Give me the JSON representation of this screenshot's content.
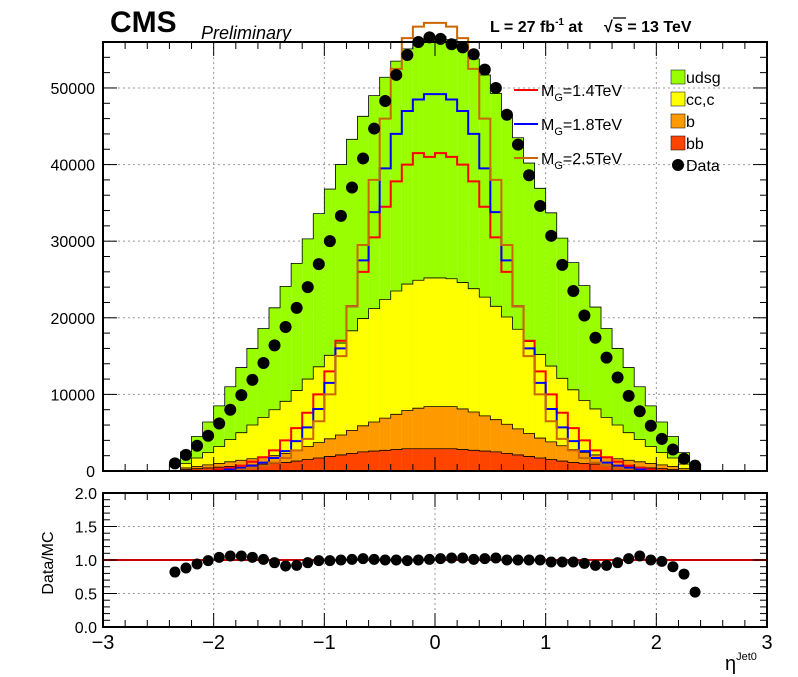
{
  "header": {
    "experiment": "CMS",
    "status": "Preliminary",
    "lumi_prefix": "L = 27 fb",
    "lumi_exp": "-1",
    "lumi_mid": " at ",
    "energy_sqrt": "s",
    "energy_suffix": " = 13 TeV"
  },
  "colors": {
    "udsg": "#99ff00",
    "cc": "#ffff00",
    "b": "#ff9900",
    "bb": "#ff4400",
    "sig14": "#ff0000",
    "sig18": "#0000ff",
    "sig25": "#cc6600",
    "data": "#000000",
    "ratio_line": "#cc0000"
  },
  "chart_data": [
    {
      "type": "histogram",
      "panel": "main",
      "xlabel": "η",
      "xlabel_sup": "Jet0",
      "xlim": [
        -3,
        3
      ],
      "ylim": [
        0,
        56000
      ],
      "grid": true,
      "bin_edges": [
        -3.0,
        -2.9,
        -2.8,
        -2.7,
        -2.6,
        -2.5,
        -2.4,
        -2.3,
        -2.2,
        -2.1,
        -2.0,
        -1.9,
        -1.8,
        -1.7,
        -1.6,
        -1.5,
        -1.4,
        -1.3,
        -1.2,
        -1.1,
        -1.0,
        -0.9,
        -0.8,
        -0.7,
        -0.6,
        -0.5,
        -0.4,
        -0.3,
        -0.2,
        -0.1,
        0.0,
        0.1,
        0.2,
        0.3,
        0.4,
        0.5,
        0.6,
        0.7,
        0.8,
        0.9,
        1.0,
        1.1,
        1.2,
        1.3,
        1.4,
        1.5,
        1.6,
        1.7,
        1.8,
        1.9,
        2.0,
        2.1,
        2.2,
        2.3,
        2.4,
        2.5,
        2.6,
        2.7,
        2.8,
        2.9,
        3.0
      ],
      "y_ticks": [
        0,
        10000,
        20000,
        30000,
        40000,
        50000
      ],
      "y_tick_labels": [
        "0",
        "10000",
        "20000",
        "30000",
        "40000",
        "50000"
      ],
      "stack": [
        {
          "name": "bb",
          "values": [
            0,
            0,
            0,
            0,
            0,
            0,
            0,
            200,
            300,
            400,
            500,
            600,
            700,
            800,
            900,
            1000,
            1100,
            1300,
            1500,
            1700,
            1900,
            2100,
            2300,
            2500,
            2600,
            2700,
            2800,
            2900,
            2900,
            2900,
            2900,
            2900,
            2800,
            2700,
            2600,
            2500,
            2300,
            2100,
            1900,
            1700,
            1500,
            1300,
            1100,
            1000,
            900,
            800,
            700,
            600,
            500,
            400,
            300,
            200,
            0,
            0,
            0,
            0,
            0,
            0,
            0,
            0
          ]
        },
        {
          "name": "b",
          "values": [
            0,
            0,
            0,
            0,
            0,
            0,
            0,
            200,
            300,
            400,
            500,
            600,
            700,
            800,
            900,
            1000,
            1200,
            1400,
            1700,
            2000,
            2300,
            2600,
            3000,
            3400,
            3800,
            4200,
            4600,
            5000,
            5300,
            5500,
            5500,
            5500,
            5300,
            5000,
            4600,
            4200,
            3800,
            3400,
            3000,
            2600,
            2300,
            2000,
            1700,
            1400,
            1200,
            1000,
            900,
            800,
            700,
            600,
            500,
            400,
            300,
            200,
            0,
            0,
            0,
            0,
            0,
            0
          ]
        },
        {
          "name": "cc,c",
          "values": [
            0,
            0,
            0,
            0,
            0,
            0,
            0,
            600,
            1100,
            1600,
            2200,
            2900,
            3600,
            4400,
            5200,
            6000,
            6800,
            7800,
            8800,
            9900,
            10900,
            12000,
            13000,
            14000,
            14800,
            15500,
            16100,
            16500,
            16700,
            16800,
            16800,
            16700,
            16500,
            16100,
            15500,
            14800,
            14000,
            13000,
            12000,
            10900,
            9900,
            8800,
            7800,
            6800,
            6000,
            5200,
            4400,
            3600,
            2900,
            2200,
            1600,
            1100,
            600,
            0,
            0,
            0,
            0,
            0,
            0,
            0
          ]
        },
        {
          "name": "udsg",
          "values": [
            0,
            0,
            0,
            0,
            0,
            0,
            0,
            1500,
            2800,
            4000,
            5300,
            6900,
            8500,
            10000,
            11600,
            13300,
            15000,
            16600,
            18300,
            20000,
            21700,
            23300,
            25000,
            26400,
            27800,
            29000,
            30000,
            30700,
            31200,
            31500,
            31500,
            31200,
            30700,
            30000,
            29000,
            27800,
            26400,
            25000,
            23300,
            21700,
            20000,
            18300,
            16600,
            15000,
            13300,
            11600,
            10000,
            8500,
            6900,
            5300,
            4000,
            2800,
            1500,
            0,
            0,
            0,
            0,
            0,
            0,
            0
          ]
        }
      ],
      "signals": [
        {
          "name": "M_G=1.4TeV",
          "label_main": "M",
          "label_sub": "G",
          "label_rest": "=1.4TeV",
          "values": [
            0,
            0,
            0,
            0,
            0,
            0,
            0,
            0,
            0,
            0,
            200,
            400,
            700,
            1200,
            1800,
            2700,
            4000,
            5600,
            7600,
            10000,
            13000,
            17000,
            21500,
            26000,
            30500,
            34500,
            37800,
            40000,
            41500,
            41000,
            41500,
            41000,
            40000,
            37800,
            34500,
            30500,
            26000,
            21500,
            17000,
            13000,
            10000,
            7600,
            5600,
            4000,
            2700,
            1800,
            1200,
            700,
            400,
            200,
            0,
            0,
            0,
            0,
            0,
            0,
            0,
            0,
            0,
            0
          ]
        },
        {
          "name": "M_G=1.8TeV",
          "label_main": "M",
          "label_sub": "G",
          "label_rest": "=1.8TeV",
          "values": [
            0,
            0,
            0,
            0,
            0,
            0,
            0,
            0,
            0,
            0,
            0,
            200,
            400,
            700,
            1100,
            1700,
            2600,
            3900,
            5700,
            8100,
            11500,
            16000,
            21500,
            27500,
            33800,
            39500,
            44000,
            47000,
            48500,
            49200,
            49200,
            48500,
            47000,
            44000,
            39500,
            33800,
            27500,
            21500,
            16000,
            11500,
            8100,
            5700,
            3900,
            2600,
            1700,
            1100,
            700,
            400,
            200,
            0,
            0,
            0,
            0,
            0,
            0,
            0,
            0,
            0,
            0,
            0
          ]
        },
        {
          "name": "M_G=2.5TeV",
          "label_main": "M",
          "label_sub": "G",
          "label_rest": "=2.5TeV",
          "values": [
            0,
            0,
            0,
            0,
            0,
            0,
            0,
            0,
            0,
            0,
            0,
            0,
            200,
            400,
            700,
            1100,
            1700,
            2700,
            4200,
            6500,
            10000,
            15000,
            21500,
            29500,
            38000,
            46000,
            52500,
            56500,
            58000,
            58500,
            58500,
            58000,
            56500,
            52500,
            46000,
            38000,
            29500,
            21500,
            15000,
            10000,
            6500,
            4200,
            2700,
            1700,
            1100,
            700,
            400,
            200,
            0,
            0,
            0,
            0,
            0,
            0,
            0,
            0,
            0,
            0,
            0,
            0
          ]
        }
      ],
      "data_series": {
        "name": "Data",
        "x": [
          -2.35,
          -2.25,
          -2.15,
          -2.05,
          -1.95,
          -1.85,
          -1.75,
          -1.65,
          -1.55,
          -1.45,
          -1.35,
          -1.25,
          -1.15,
          -1.05,
          -0.95,
          -0.85,
          -0.75,
          -0.65,
          -0.55,
          -0.45,
          -0.35,
          -0.25,
          -0.15,
          -0.05,
          0.05,
          0.15,
          0.25,
          0.35,
          0.45,
          0.55,
          0.65,
          0.75,
          0.85,
          0.95,
          1.05,
          1.15,
          1.25,
          1.35,
          1.45,
          1.55,
          1.65,
          1.75,
          1.85,
          1.95,
          2.05,
          2.15,
          2.25,
          2.35
        ],
        "y": [
          1000,
          2100,
          3300,
          4600,
          6200,
          8000,
          9900,
          11900,
          14100,
          16400,
          18800,
          21300,
          24000,
          27000,
          30000,
          33300,
          37000,
          40800,
          44700,
          48300,
          51700,
          54300,
          56000,
          56600,
          56400,
          55700,
          55300,
          54400,
          52400,
          50000,
          46500,
          42600,
          38600,
          34600,
          30700,
          26900,
          23500,
          20300,
          17400,
          14800,
          12200,
          9800,
          7800,
          5900,
          4200,
          2800,
          1600,
          700
        ]
      },
      "legend": {
        "placement": "top-right",
        "stack_order": [
          "udsg",
          "cc,c",
          "b",
          "bb"
        ]
      }
    },
    {
      "type": "scatter",
      "panel": "ratio",
      "ylabel": "Data/MC",
      "xlim": [
        -3,
        3
      ],
      "ylim": [
        0,
        2
      ],
      "grid": true,
      "reference_line": 1.0,
      "x_ticks": [
        -3,
        -2,
        -1,
        0,
        1,
        2,
        3
      ],
      "x_tick_labels": [
        "−3",
        "−2",
        "−1",
        "0",
        "1",
        "2",
        "3"
      ],
      "y_ticks": [
        0,
        0.5,
        1,
        1.5,
        2
      ],
      "y_tick_labels": [
        "0.0",
        "0.5",
        "1.0",
        "1.5",
        "2.0"
      ],
      "x": [
        -2.35,
        -2.25,
        -2.15,
        -2.05,
        -1.95,
        -1.85,
        -1.75,
        -1.65,
        -1.55,
        -1.45,
        -1.35,
        -1.25,
        -1.15,
        -1.05,
        -0.95,
        -0.85,
        -0.75,
        -0.65,
        -0.55,
        -0.45,
        -0.35,
        -0.25,
        -0.15,
        -0.05,
        0.05,
        0.15,
        0.25,
        0.35,
        0.45,
        0.55,
        0.65,
        0.75,
        0.85,
        0.95,
        1.05,
        1.15,
        1.25,
        1.35,
        1.45,
        1.55,
        1.65,
        1.75,
        1.85,
        1.95,
        2.05,
        2.15,
        2.25,
        2.35
      ],
      "y": [
        0.82,
        0.88,
        0.94,
        0.99,
        1.04,
        1.06,
        1.06,
        1.04,
        1.01,
        0.96,
        0.91,
        0.92,
        0.96,
        0.99,
        0.99,
        1.0,
        1.01,
        1.02,
        1.01,
        1.0,
        1.0,
        0.99,
        1.0,
        1.01,
        1.02,
        1.03,
        1.03,
        1.01,
        1.02,
        1.03,
        1.0,
        1.0,
        1.0,
        1.0,
        0.97,
        0.97,
        0.97,
        0.95,
        0.92,
        0.92,
        0.96,
        1.02,
        1.06,
        1.0,
        0.98,
        0.9,
        0.79,
        0.52
      ]
    }
  ]
}
